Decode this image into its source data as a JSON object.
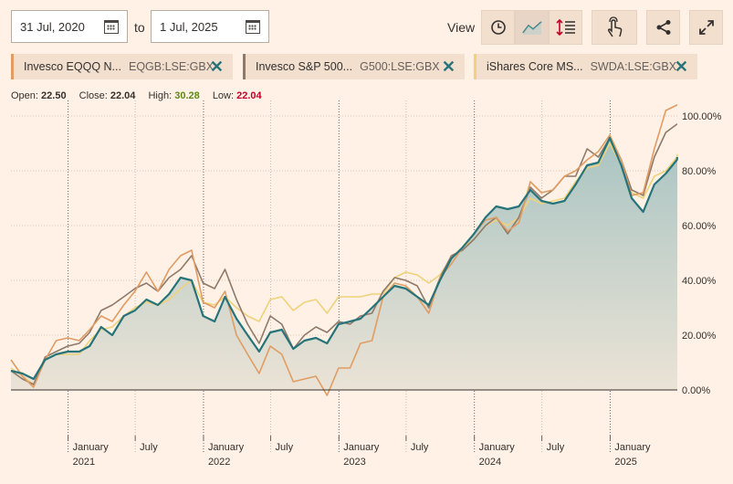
{
  "controls": {
    "start_date": "31 Jul, 2020",
    "to_label": "to",
    "end_date": "1 Jul, 2025",
    "view_label": "View",
    "tools": [
      "clock-icon",
      "line-chart-icon",
      "compare-icon",
      "touch-icon",
      "share-icon",
      "expand-icon"
    ]
  },
  "chips": [
    {
      "name": "Invesco EQQQ N...",
      "code": "EQGB:LSE:GBX",
      "color": "#e09c62"
    },
    {
      "name": "Invesco S&P 500...",
      "code": "G500:LSE:GBX",
      "color": "#8f7a6a"
    },
    {
      "name": "iShares Core MS...",
      "code": "SWDA:LSE:GBX",
      "color": "#efd27a"
    }
  ],
  "ohlc": {
    "open_label": "Open:",
    "open": "22.50",
    "close_label": "Close:",
    "close": "22.04",
    "high_label": "High:",
    "high": "30.28",
    "low_label": "Low:",
    "low": "22.04",
    "high_color": "#5d8a16",
    "low_color": "#c2002a"
  },
  "chart_data": {
    "type": "area",
    "ylim": [
      -12,
      105
    ],
    "xlim": [
      "2020-07-31",
      "2025-07-01"
    ],
    "y_ticks": [
      0,
      20,
      40,
      60,
      80,
      100
    ],
    "y_tick_labels": [
      "0.00%",
      "20.00%",
      "40.00%",
      "60.00%",
      "80.00%",
      "100.00%"
    ],
    "x_ticks": [
      {
        "date": "2021-01-01",
        "label": "January",
        "year": "2021"
      },
      {
        "date": "2021-07-01",
        "label": "July",
        "year": ""
      },
      {
        "date": "2022-01-01",
        "label": "January",
        "year": "2022"
      },
      {
        "date": "2022-07-01",
        "label": "July",
        "year": ""
      },
      {
        "date": "2023-01-01",
        "label": "January",
        "year": "2023"
      },
      {
        "date": "2023-07-01",
        "label": "July",
        "year": ""
      },
      {
        "date": "2024-01-01",
        "label": "January",
        "year": "2024"
      },
      {
        "date": "2024-07-01",
        "label": "July",
        "year": ""
      },
      {
        "date": "2025-01-01",
        "label": "January",
        "year": "2025"
      }
    ],
    "dates": [
      "2020-07-31",
      "2020-08-31",
      "2020-09-30",
      "2020-10-31",
      "2020-11-30",
      "2020-12-31",
      "2021-01-31",
      "2021-02-28",
      "2021-03-31",
      "2021-04-30",
      "2021-05-31",
      "2021-06-30",
      "2021-07-31",
      "2021-08-31",
      "2021-09-30",
      "2021-10-31",
      "2021-11-30",
      "2021-12-31",
      "2022-01-31",
      "2022-02-28",
      "2022-03-31",
      "2022-04-30",
      "2022-05-31",
      "2022-06-30",
      "2022-07-31",
      "2022-08-31",
      "2022-09-30",
      "2022-10-31",
      "2022-11-30",
      "2022-12-31",
      "2023-01-31",
      "2023-02-28",
      "2023-03-31",
      "2023-04-30",
      "2023-05-31",
      "2023-06-30",
      "2023-07-31",
      "2023-08-31",
      "2023-09-30",
      "2023-10-31",
      "2023-11-30",
      "2023-12-31",
      "2024-01-31",
      "2024-02-29",
      "2024-03-31",
      "2024-04-30",
      "2024-05-31",
      "2024-06-30",
      "2024-07-31",
      "2024-08-31",
      "2024-09-30",
      "2024-10-31",
      "2024-11-30",
      "2024-12-31",
      "2025-01-31",
      "2025-02-28",
      "2025-03-31",
      "2025-04-30",
      "2025-05-31",
      "2025-06-30",
      "2025-07-01"
    ],
    "series": [
      {
        "color": "#26747a",
        "fill": true,
        "values": [
          7,
          6,
          4,
          11,
          13,
          14,
          14,
          16,
          23,
          20,
          27,
          29,
          33,
          31,
          35,
          41,
          40,
          27,
          25,
          34,
          26,
          20,
          14,
          21,
          22,
          15,
          18,
          19,
          17,
          24,
          25,
          26,
          30,
          34,
          38,
          37,
          34,
          31,
          40,
          48,
          52,
          57,
          63,
          67,
          66,
          67,
          73,
          69,
          68,
          69,
          75,
          82,
          83,
          92,
          82,
          70,
          65,
          75,
          79,
          84,
          85
        ]
      },
      {
        "color": "#e09c62",
        "fill": false,
        "values": [
          11,
          5,
          1,
          11,
          18,
          19,
          18,
          22,
          27,
          25,
          31,
          36,
          43,
          36,
          44,
          49,
          51,
          32,
          30,
          36,
          20,
          13,
          6,
          16,
          13,
          3,
          4,
          5,
          -2,
          8,
          8,
          17,
          18,
          34,
          39,
          38,
          34,
          28,
          41,
          46,
          52,
          57,
          62,
          63,
          58,
          61,
          76,
          72,
          73,
          78,
          80,
          84,
          87,
          93,
          84,
          71,
          72,
          88,
          102,
          104,
          104
        ]
      },
      {
        "color": "#8f7a6a",
        "fill": false,
        "values": [
          7,
          4,
          2,
          12,
          14,
          16,
          17,
          21,
          29,
          31,
          34,
          37,
          39,
          36,
          41,
          44,
          49,
          39,
          37,
          44,
          33,
          24,
          17,
          27,
          24,
          15,
          20,
          23,
          21,
          25,
          24,
          27,
          28,
          36,
          41,
          40,
          38,
          30,
          41,
          49,
          51,
          55,
          60,
          63,
          57,
          63,
          74,
          70,
          73,
          78,
          78,
          88,
          85,
          92,
          84,
          73,
          71,
          85,
          94,
          97,
          97
        ]
      },
      {
        "color": "#efd27a",
        "fill": false,
        "values": [
          8,
          5,
          2,
          11,
          13,
          13,
          13,
          18,
          22,
          23,
          27,
          30,
          32,
          31,
          33,
          37,
          40,
          32,
          31,
          34,
          30,
          27,
          25,
          33,
          34,
          29,
          32,
          33,
          28,
          34,
          34,
          34,
          35,
          35,
          41,
          43,
          42,
          39,
          42,
          48,
          52,
          55,
          60,
          62,
          60,
          63,
          70,
          68,
          69,
          70,
          76,
          81,
          82,
          90,
          82,
          72,
          70,
          78,
          80,
          85,
          86
        ]
      }
    ]
  }
}
